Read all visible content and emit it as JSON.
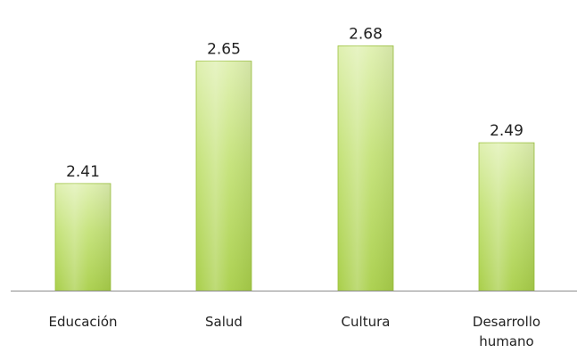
{
  "chart_data": {
    "type": "bar",
    "title": "",
    "xlabel": "",
    "ylabel": "",
    "categories": [
      [
        "Educación"
      ],
      [
        "Salud"
      ],
      [
        "Cultura"
      ],
      [
        "Desarrollo",
        "humano"
      ]
    ],
    "values": [
      2.41,
      2.65,
      2.68,
      2.49
    ],
    "value_labels": [
      "2.41",
      "2.65",
      "2.68",
      "2.49"
    ],
    "ylim": [
      2.2,
      2.7
    ],
    "grid": false,
    "legend": "none",
    "colors": {
      "bar_top": "#dff0b0",
      "bar_mid": "#c4e278",
      "bar_bottom": "#a9cf4a",
      "bar_edge": "#9cc23e",
      "axis": "#8c8c8c",
      "text": "#222222"
    }
  }
}
